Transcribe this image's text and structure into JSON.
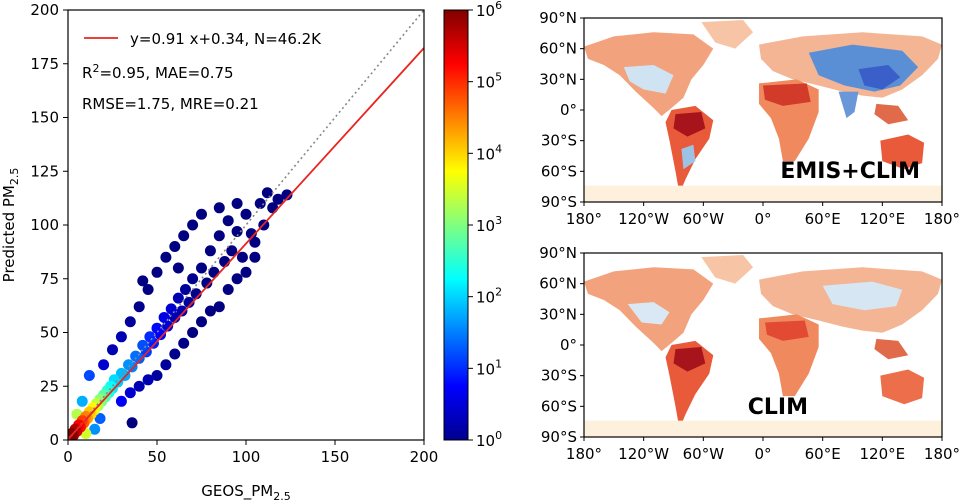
{
  "colors": {
    "fit_line": "#e8251f",
    "one_to_one": "#888888",
    "ocean": "#ffffff",
    "land_base": "#f2a37d",
    "antarctica": "#fdf0dc"
  },
  "chart_data": [
    {
      "type": "scatter",
      "title": "",
      "xlabel": "GEOS_PM",
      "xlabel_sub": "2.5",
      "ylabel": "Predicted PM",
      "ylabel_sub": "2.5",
      "xlim": [
        0,
        200
      ],
      "ylim": [
        0,
        200
      ],
      "x_ticks": [
        "0",
        "50",
        "100",
        "150",
        "200"
      ],
      "y_ticks": [
        "0",
        "25",
        "50",
        "75",
        "100",
        "125",
        "150",
        "175",
        "200"
      ],
      "grid": false,
      "legend_position": "top-left",
      "fit": {
        "slope": 0.91,
        "intercept": 0.34,
        "label": "y=0.91 x+0.34, N=46.2K"
      },
      "one_to_one_line": true,
      "annotations": [
        {
          "id": "r2",
          "prefix": "R",
          "sup": "2",
          "suffix": "=0.95, MAE=0.75"
        },
        {
          "id": "rmse",
          "text": "RMSE=1.75, MRE=0.21"
        }
      ],
      "points": [
        [
          2,
          3,
          1000000
        ],
        [
          3,
          2,
          800000
        ],
        [
          4,
          5,
          500000
        ],
        [
          5,
          4,
          300000
        ],
        [
          6,
          7,
          200000
        ],
        [
          7,
          6,
          150000
        ],
        [
          8,
          9,
          80000
        ],
        [
          9,
          8,
          50000
        ],
        [
          10,
          11,
          30000
        ],
        [
          11,
          10,
          20000
        ],
        [
          12,
          13,
          12000
        ],
        [
          13,
          12,
          9000
        ],
        [
          14,
          15,
          6000
        ],
        [
          15,
          14,
          4000
        ],
        [
          16,
          17,
          2500
        ],
        [
          17,
          16,
          1800
        ],
        [
          18,
          19,
          1200
        ],
        [
          19,
          18,
          900
        ],
        [
          20,
          21,
          600
        ],
        [
          21,
          20,
          450
        ],
        [
          22,
          23,
          300
        ],
        [
          23,
          22,
          250
        ],
        [
          24,
          25,
          180
        ],
        [
          25,
          24,
          140
        ],
        [
          26,
          28,
          110
        ],
        [
          28,
          27,
          90
        ],
        [
          30,
          31,
          70
        ],
        [
          32,
          30,
          55
        ],
        [
          34,
          35,
          40
        ],
        [
          36,
          34,
          32
        ],
        [
          38,
          39,
          25
        ],
        [
          40,
          38,
          20
        ],
        [
          42,
          44,
          16
        ],
        [
          44,
          41,
          12
        ],
        [
          46,
          48,
          10
        ],
        [
          48,
          45,
          8
        ],
        [
          50,
          52,
          6
        ],
        [
          52,
          49,
          5
        ],
        [
          54,
          57,
          4
        ],
        [
          56,
          53,
          3
        ],
        [
          58,
          61,
          3
        ],
        [
          60,
          57,
          2
        ],
        [
          62,
          66,
          2
        ],
        [
          64,
          60,
          2
        ],
        [
          66,
          70,
          1.5
        ],
        [
          68,
          64,
          1.5
        ],
        [
          70,
          75,
          1.2
        ],
        [
          72,
          68,
          1.2
        ],
        [
          75,
          80,
          1.1
        ],
        [
          78,
          73,
          1.1
        ],
        [
          80,
          88,
          1
        ],
        [
          82,
          78,
          1
        ],
        [
          85,
          95,
          1
        ],
        [
          88,
          83,
          1
        ],
        [
          90,
          102,
          1
        ],
        [
          92,
          88,
          1
        ],
        [
          95,
          97,
          1
        ],
        [
          98,
          85,
          1
        ],
        [
          100,
          105,
          1
        ],
        [
          103,
          96,
          1
        ],
        [
          105,
          92,
          1
        ],
        [
          108,
          110,
          1
        ],
        [
          110,
          100,
          1
        ],
        [
          112,
          115,
          1
        ],
        [
          115,
          108,
          1
        ],
        [
          118,
          112,
          1
        ],
        [
          123,
          114,
          1
        ],
        [
          20,
          35,
          3
        ],
        [
          25,
          42,
          2
        ],
        [
          30,
          48,
          2
        ],
        [
          35,
          55,
          1.5
        ],
        [
          40,
          62,
          1.2
        ],
        [
          45,
          70,
          1
        ],
        [
          42,
          74,
          1
        ],
        [
          50,
          78,
          1
        ],
        [
          55,
          85,
          1
        ],
        [
          60,
          90,
          1
        ],
        [
          62,
          80,
          1
        ],
        [
          65,
          95,
          1
        ],
        [
          70,
          100,
          1
        ],
        [
          75,
          105,
          1
        ],
        [
          85,
          108,
          1
        ],
        [
          95,
          110,
          1
        ],
        [
          30,
          18,
          5
        ],
        [
          35,
          22,
          3
        ],
        [
          40,
          25,
          2
        ],
        [
          45,
          28,
          2
        ],
        [
          50,
          30,
          1.5
        ],
        [
          55,
          35,
          1.5
        ],
        [
          60,
          40,
          1.2
        ],
        [
          65,
          45,
          1.1
        ],
        [
          70,
          50,
          1
        ],
        [
          75,
          55,
          1
        ],
        [
          80,
          60,
          1
        ],
        [
          85,
          62,
          1
        ],
        [
          90,
          70,
          1
        ],
        [
          95,
          75,
          1
        ],
        [
          100,
          78,
          1
        ],
        [
          105,
          85,
          1
        ],
        [
          36,
          8,
          1
        ],
        [
          12,
          30,
          15
        ],
        [
          15,
          5,
          40
        ],
        [
          8,
          18,
          60
        ],
        [
          18,
          10,
          20
        ],
        [
          10,
          3,
          3000
        ],
        [
          5,
          12,
          2000
        ]
      ]
    },
    {
      "type": "heatmap",
      "title": "",
      "colorbar_scale": "log",
      "colorbar_range": [
        1,
        1000000
      ],
      "colorbar_ticks": [
        {
          "base": "10",
          "exp": "0"
        },
        {
          "base": "10",
          "exp": "1"
        },
        {
          "base": "10",
          "exp": "2"
        },
        {
          "base": "10",
          "exp": "3"
        },
        {
          "base": "10",
          "exp": "4"
        },
        {
          "base": "10",
          "exp": "5"
        },
        {
          "base": "10",
          "exp": "6"
        }
      ]
    },
    {
      "type": "heatmap",
      "title": "EMIS+CLIM",
      "projection": "equirectangular",
      "lat_ticks": [
        "90°N",
        "60°N",
        "30°N",
        "0°",
        "30°S",
        "60°S",
        "90°S"
      ],
      "lon_ticks": [
        "180°",
        "120°W",
        "60°W",
        "0°",
        "60°E",
        "120°E",
        "180°"
      ]
    },
    {
      "type": "heatmap",
      "title": "CLIM",
      "projection": "equirectangular",
      "lat_ticks": [
        "90°N",
        "60°N",
        "30°N",
        "0°",
        "30°S",
        "60°S",
        "90°S"
      ],
      "lon_ticks": [
        "180°",
        "120°W",
        "60°W",
        "0°",
        "60°E",
        "120°E",
        "180°"
      ]
    }
  ]
}
